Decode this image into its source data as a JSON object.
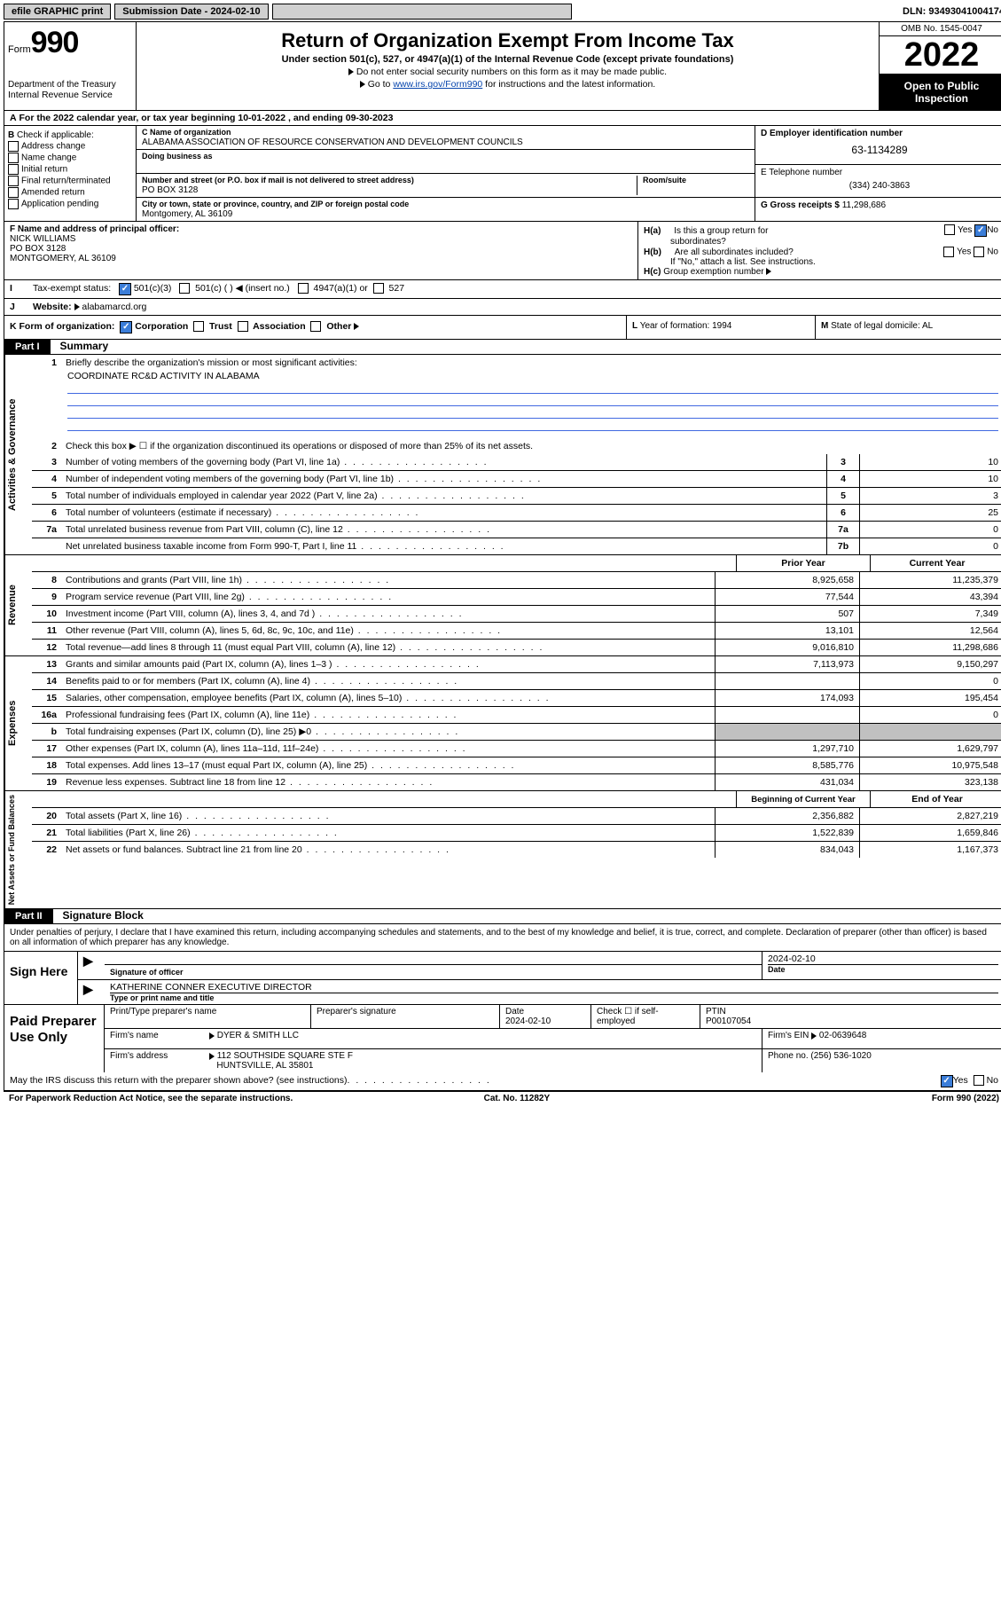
{
  "topbar": {
    "efile": "efile GRAPHIC print",
    "submission_label": "Submission Date - 2024-02-10",
    "dln": "DLN: 93493041004174"
  },
  "header": {
    "form_label": "Form",
    "form_num": "990",
    "dept": "Department of the Treasury",
    "irs": "Internal Revenue Service",
    "title": "Return of Organization Exempt From Income Tax",
    "sub": "Under section 501(c), 527, or 4947(a)(1) of the Internal Revenue Code (except private foundations)",
    "note1": "Do not enter social security numbers on this form as it may be made public.",
    "note2_pre": "Go to ",
    "note2_link": "www.irs.gov/Form990",
    "note2_post": " for instructions and the latest information.",
    "omb": "OMB No. 1545-0047",
    "year": "2022",
    "inspect1": "Open to Public",
    "inspect2": "Inspection"
  },
  "periodA": "For the 2022 calendar year, or tax year beginning 10-01-2022     , and ending 09-30-2023",
  "B": {
    "hdr": "Check if applicable:",
    "items": [
      "Address change",
      "Name change",
      "Initial return",
      "Final return/terminated",
      "Amended return",
      "Application pending"
    ]
  },
  "C": {
    "name_lbl": "C Name of organization",
    "name": "ALABAMA ASSOCIATION OF RESOURCE CONSERVATION AND DEVELOPMENT COUNCILS",
    "dba_lbl": "Doing business as",
    "street_lbl": "Number and street (or P.O. box if mail is not delivered to street address)",
    "room_lbl": "Room/suite",
    "street": "PO BOX 3128",
    "city_lbl": "City or town, state or province, country, and ZIP or foreign postal code",
    "city": "Montgomery, AL  36109"
  },
  "D": {
    "lbl": "D Employer identification number",
    "val": "63-1134289"
  },
  "E": {
    "lbl": "E Telephone number",
    "val": "(334) 240-3863"
  },
  "G": {
    "lbl": "G Gross receipts $",
    "val": "11,298,686"
  },
  "F": {
    "lbl": "F  Name and address of principal officer:",
    "name": "NICK WILLIAMS",
    "addr1": "PO BOX 3128",
    "addr2": "MONTGOMERY, AL  36109"
  },
  "H": {
    "a": "Is this a group return for",
    "a2": "subordinates?",
    "b": "Are all subordinates included?",
    "note": "If \"No,\" attach a list. See instructions.",
    "c": "Group exemption number"
  },
  "I": {
    "lbl": "Tax-exempt status:",
    "opts": [
      "501(c)(3)",
      "501(c) (  )",
      "(insert no.)",
      "4947(a)(1) or",
      "527"
    ]
  },
  "J": {
    "lbl": "Website:",
    "val": "alabamarcd.org"
  },
  "K": {
    "lbl": "Form of organization:",
    "opts": [
      "Corporation",
      "Trust",
      "Association",
      "Other"
    ]
  },
  "L": {
    "lbl": "Year of formation:",
    "val": "1994"
  },
  "M": {
    "lbl": "State of legal domicile:",
    "val": "AL"
  },
  "part1": {
    "hdr": "Part I",
    "title": "Summary"
  },
  "summary": {
    "q1": "Briefly describe the organization's mission or most significant activities:",
    "q1val": "COORDINATE RC&D ACTIVITY IN ALABAMA",
    "q2": "Check this box ▶ ☐  if the organization discontinued its operations or disposed of more than 25% of its net assets.",
    "lines_gov": [
      {
        "n": "3",
        "d": "Number of voting members of the governing body (Part VI, line 1a)",
        "box": "3",
        "v": "10"
      },
      {
        "n": "4",
        "d": "Number of independent voting members of the governing body (Part VI, line 1b)",
        "box": "4",
        "v": "10"
      },
      {
        "n": "5",
        "d": "Total number of individuals employed in calendar year 2022 (Part V, line 2a)",
        "box": "5",
        "v": "3"
      },
      {
        "n": "6",
        "d": "Total number of volunteers (estimate if necessary)",
        "box": "6",
        "v": "25"
      },
      {
        "n": "7a",
        "d": "Total unrelated business revenue from Part VIII, column (C), line 12",
        "box": "7a",
        "v": "0"
      },
      {
        "n": "",
        "d": "Net unrelated business taxable income from Form 990-T, Part I, line 11",
        "box": "7b",
        "v": "0"
      }
    ],
    "hdr_prior": "Prior Year",
    "hdr_curr": "Current Year",
    "rev": [
      {
        "n": "8",
        "d": "Contributions and grants (Part VIII, line 1h)",
        "p": "8,925,658",
        "c": "11,235,379"
      },
      {
        "n": "9",
        "d": "Program service revenue (Part VIII, line 2g)",
        "p": "77,544",
        "c": "43,394"
      },
      {
        "n": "10",
        "d": "Investment income (Part VIII, column (A), lines 3, 4, and 7d )",
        "p": "507",
        "c": "7,349"
      },
      {
        "n": "11",
        "d": "Other revenue (Part VIII, column (A), lines 5, 6d, 8c, 9c, 10c, and 11e)",
        "p": "13,101",
        "c": "12,564"
      },
      {
        "n": "12",
        "d": "Total revenue—add lines 8 through 11 (must equal Part VIII, column (A), line 12)",
        "p": "9,016,810",
        "c": "11,298,686"
      }
    ],
    "exp": [
      {
        "n": "13",
        "d": "Grants and similar amounts paid (Part IX, column (A), lines 1–3 )",
        "p": "7,113,973",
        "c": "9,150,297"
      },
      {
        "n": "14",
        "d": "Benefits paid to or for members (Part IX, column (A), line 4)",
        "p": "",
        "c": "0"
      },
      {
        "n": "15",
        "d": "Salaries, other compensation, employee benefits (Part IX, column (A), lines 5–10)",
        "p": "174,093",
        "c": "195,454"
      },
      {
        "n": "16a",
        "d": "Professional fundraising fees (Part IX, column (A), line 11e)",
        "p": "",
        "c": "0"
      },
      {
        "n": "b",
        "d": "Total fundraising expenses (Part IX, column (D), line 25) ▶0",
        "p": "",
        "c": "",
        "gray": true
      },
      {
        "n": "17",
        "d": "Other expenses (Part IX, column (A), lines 11a–11d, 11f–24e)",
        "p": "1,297,710",
        "c": "1,629,797"
      },
      {
        "n": "18",
        "d": "Total expenses. Add lines 13–17 (must equal Part IX, column (A), line 25)",
        "p": "8,585,776",
        "c": "10,975,548"
      },
      {
        "n": "19",
        "d": "Revenue less expenses. Subtract line 18 from line 12",
        "p": "431,034",
        "c": "323,138"
      }
    ],
    "hdr_begin": "Beginning of Current Year",
    "hdr_end": "End of Year",
    "net": [
      {
        "n": "20",
        "d": "Total assets (Part X, line 16)",
        "p": "2,356,882",
        "c": "2,827,219"
      },
      {
        "n": "21",
        "d": "Total liabilities (Part X, line 26)",
        "p": "1,522,839",
        "c": "1,659,846"
      },
      {
        "n": "22",
        "d": "Net assets or fund balances. Subtract line 21 from line 20",
        "p": "834,043",
        "c": "1,167,373"
      }
    ],
    "vlabels": {
      "gov": "Activities & Governance",
      "rev": "Revenue",
      "exp": "Expenses",
      "net": "Net Assets or Fund Balances"
    }
  },
  "part2": {
    "hdr": "Part II",
    "title": "Signature Block"
  },
  "sig": {
    "decl": "Under penalties of perjury, I declare that I have examined this return, including accompanying schedules and statements, and to the best of my knowledge and belief, it is true, correct, and complete. Declaration of preparer (other than officer) is based on all information of which preparer has any knowledge.",
    "sign_here": "Sign Here",
    "sig_officer": "Signature of officer",
    "date": "Date",
    "date_val": "2024-02-10",
    "name": "KATHERINE CONNER  EXECUTIVE DIRECTOR",
    "name_lbl": "Type or print name and title"
  },
  "prep": {
    "lbl": "Paid Preparer Use Only",
    "h1": "Print/Type preparer's name",
    "h2": "Preparer's signature",
    "h3": "Date",
    "h3v": "2024-02-10",
    "h4": "Check ☐ if self-employed",
    "h5": "PTIN",
    "h5v": "P00107054",
    "firm_lbl": "Firm's name",
    "firm": "DYER & SMITH LLC",
    "ein_lbl": "Firm's EIN",
    "ein": "02-0639648",
    "addr_lbl": "Firm's address",
    "addr1": "112 SOUTHSIDE SQUARE STE F",
    "addr2": "HUNTSVILLE, AL  35801",
    "phone_lbl": "Phone no.",
    "phone": "(256) 536-1020"
  },
  "discuss": "May the IRS discuss this return with the preparer shown above? (see instructions)",
  "footer": {
    "l": "For Paperwork Reduction Act Notice, see the separate instructions.",
    "m": "Cat. No. 11282Y",
    "r": "Form 990 (2022)"
  },
  "yes": "Yes",
  "no": "No"
}
